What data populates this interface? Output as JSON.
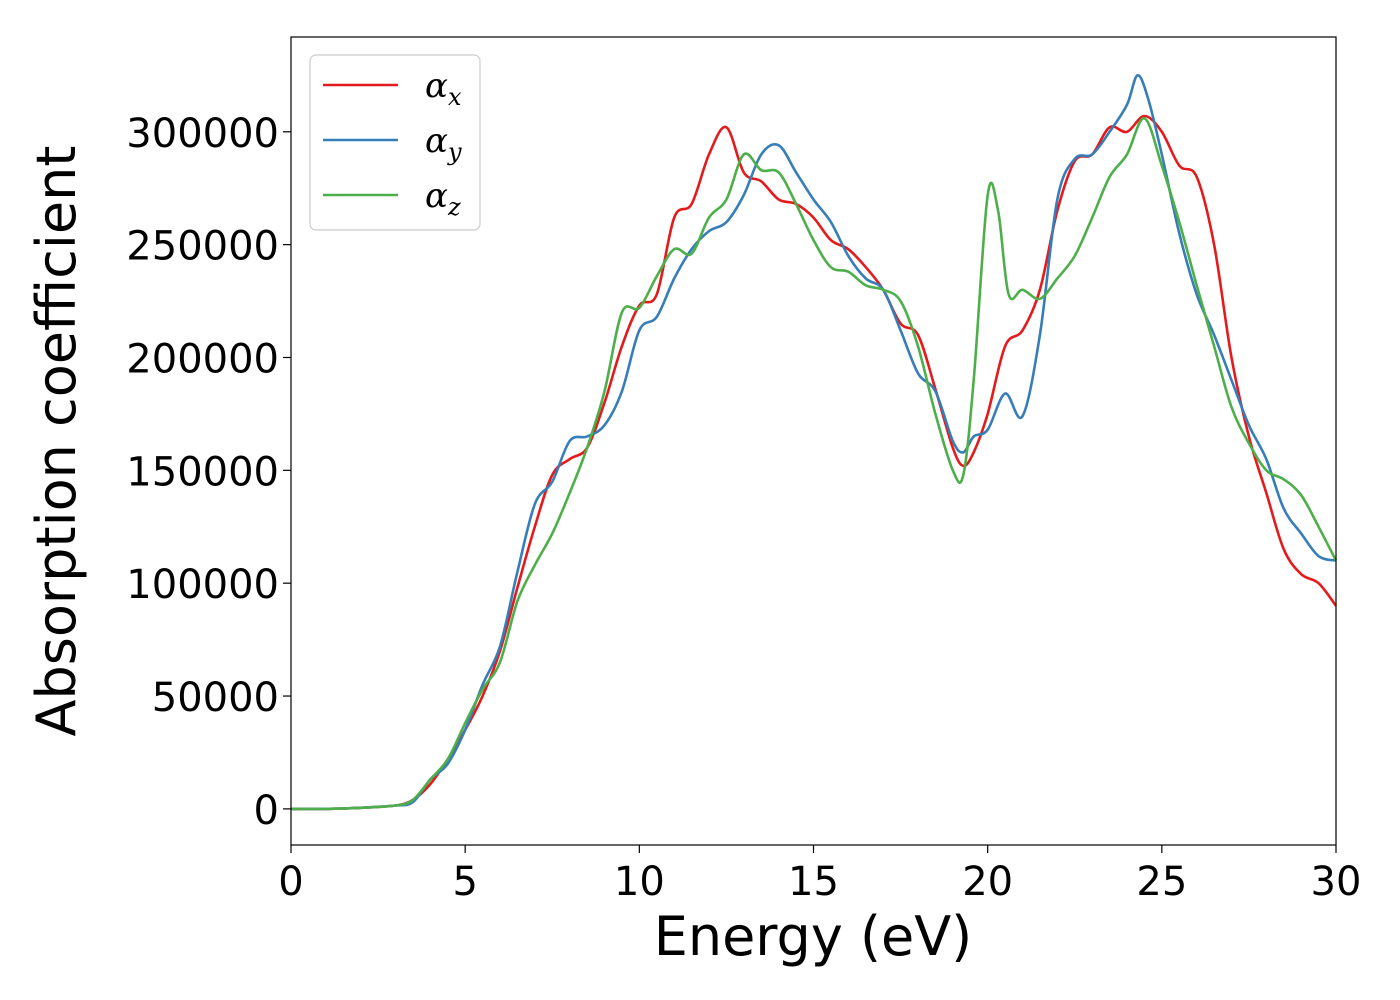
{
  "chart_data": {
    "type": "line",
    "xlabel": "Energy (eV)",
    "ylabel": "Absorption coefficient",
    "xlim": [
      0,
      30
    ],
    "ylim": [
      -16000,
      342000
    ],
    "xticks": [
      0,
      5,
      10,
      15,
      20,
      25,
      30
    ],
    "yticks": [
      0,
      50000,
      100000,
      150000,
      200000,
      250000,
      300000
    ],
    "grid": false,
    "legend_position": "top-left",
    "series": [
      {
        "name": "α",
        "subscript": "x",
        "color": "#e41a1c",
        "x": [
          0,
          1,
          2,
          3,
          3.5,
          4,
          4.5,
          5,
          5.5,
          6,
          6.5,
          7,
          7.5,
          8,
          8.5,
          9,
          9.5,
          10,
          10.5,
          11,
          11.5,
          12,
          12.5,
          13,
          13.5,
          14,
          14.5,
          15,
          15.5,
          16,
          16.5,
          17,
          17.5,
          18,
          18.5,
          19,
          19.3,
          19.6,
          20,
          20.5,
          21,
          21.5,
          22,
          22.5,
          23,
          23.5,
          24,
          24.5,
          25,
          25.5,
          26,
          26.5,
          27,
          27.5,
          28,
          28.5,
          29,
          29.5,
          30
        ],
        "y": [
          0,
          0,
          500,
          1500,
          4000,
          11000,
          22000,
          35000,
          50000,
          70000,
          98000,
          125000,
          148000,
          155000,
          160000,
          180000,
          205000,
          223000,
          228000,
          262000,
          268000,
          290000,
          302000,
          282000,
          278000,
          270000,
          268000,
          262000,
          252000,
          248000,
          240000,
          230000,
          215000,
          210000,
          186000,
          160000,
          152000,
          158000,
          175000,
          205000,
          212000,
          230000,
          265000,
          287000,
          290000,
          302000,
          300000,
          307000,
          300000,
          285000,
          280000,
          250000,
          200000,
          165000,
          140000,
          115000,
          104000,
          100000,
          90000
        ]
      },
      {
        "name": "α",
        "subscript": "y",
        "color": "#377eb8",
        "x": [
          0,
          1,
          2,
          3,
          3.5,
          4,
          4.5,
          5,
          5.5,
          6,
          6.5,
          7,
          7.5,
          8,
          8.5,
          9,
          9.5,
          10,
          10.5,
          11,
          11.5,
          12,
          12.5,
          13,
          13.5,
          14,
          14.5,
          15,
          15.5,
          16,
          16.5,
          17,
          17.5,
          18,
          18.5,
          19,
          19.3,
          19.6,
          20,
          20.5,
          21,
          21.5,
          22,
          22.5,
          23,
          23.5,
          24,
          24.3,
          24.6,
          25,
          25.5,
          26,
          26.5,
          27,
          27.5,
          28,
          28.5,
          29,
          29.5,
          30
        ],
        "y": [
          0,
          0,
          500,
          1500,
          3000,
          13000,
          20000,
          35000,
          55000,
          72000,
          105000,
          135000,
          145000,
          163000,
          165000,
          170000,
          185000,
          212000,
          218000,
          235000,
          248000,
          256000,
          260000,
          272000,
          290000,
          294000,
          282000,
          270000,
          260000,
          245000,
          235000,
          230000,
          212000,
          193000,
          185000,
          163000,
          158000,
          165000,
          168000,
          184000,
          174000,
          210000,
          270000,
          288000,
          290000,
          300000,
          312000,
          325000,
          315000,
          290000,
          255000,
          228000,
          210000,
          190000,
          170000,
          155000,
          133000,
          122000,
          112000,
          110000
        ]
      },
      {
        "name": "α",
        "subscript": "z",
        "color": "#4daf4a",
        "x": [
          0,
          1,
          2,
          3,
          3.5,
          4,
          4.5,
          5,
          5.5,
          6,
          6.5,
          7,
          7.5,
          8,
          8.5,
          9,
          9.5,
          10,
          10.5,
          11,
          11.5,
          12,
          12.5,
          13,
          13.5,
          14,
          14.5,
          15,
          15.5,
          16,
          16.5,
          17,
          17.5,
          18,
          18.5,
          19,
          19.3,
          19.6,
          20,
          20.3,
          20.6,
          21,
          21.5,
          22,
          22.5,
          23,
          23.5,
          24,
          24.5,
          25,
          25.5,
          26,
          26.5,
          27,
          27.5,
          28,
          28.5,
          29,
          29.5,
          30
        ],
        "y": [
          0,
          0,
          500,
          1500,
          4000,
          13000,
          22000,
          38000,
          53000,
          65000,
          92000,
          108000,
          122000,
          140000,
          160000,
          185000,
          220000,
          222000,
          236000,
          248000,
          246000,
          262000,
          270000,
          290000,
          283000,
          282000,
          268000,
          252000,
          240000,
          238000,
          232000,
          230000,
          225000,
          205000,
          175000,
          150000,
          148000,
          190000,
          272000,
          265000,
          228000,
          230000,
          226000,
          235000,
          245000,
          262000,
          280000,
          290000,
          306000,
          285000,
          260000,
          232000,
          205000,
          178000,
          162000,
          150000,
          146000,
          139000,
          125000,
          110000
        ]
      }
    ]
  }
}
